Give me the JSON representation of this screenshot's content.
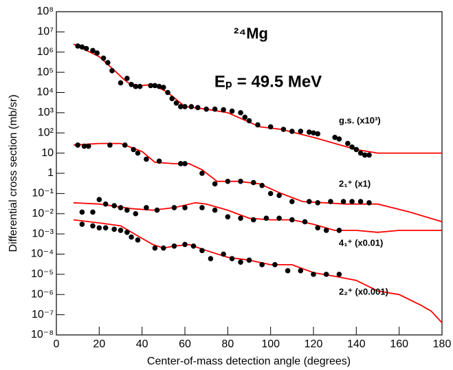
{
  "chart_data": {
    "type": "scatter",
    "annotations": [
      "²⁴Mg",
      "Eₚ = 49.5 MeV"
    ],
    "xlabel": "Center-of-mass detection angle (degrees)",
    "ylabel": "Differential cross section (mb/sr)",
    "xlim": [
      0,
      180
    ],
    "xticks": [
      0,
      20,
      40,
      60,
      80,
      100,
      120,
      140,
      160,
      180
    ],
    "ylim": [
      1e-08,
      100000000.0
    ],
    "log_y": true,
    "yticks": [
      {
        "value": 1e-08,
        "label": "10⁻⁸"
      },
      {
        "value": 1e-07,
        "label": "10⁻⁷"
      },
      {
        "value": 1e-06,
        "label": "10⁻⁶"
      },
      {
        "value": 1e-05,
        "label": "10⁻⁵"
      },
      {
        "value": 0.0001,
        "label": "10⁻⁴"
      },
      {
        "value": 0.001,
        "label": "10⁻³"
      },
      {
        "value": 0.01,
        "label": "10⁻²"
      },
      {
        "value": 0.1,
        "label": "10⁻¹"
      },
      1,
      10,
      {
        "value": 100,
        "label": "10²"
      },
      {
        "value": 1000,
        "label": "10³"
      },
      {
        "value": 10000,
        "label": "10⁴"
      },
      {
        "value": 100000,
        "label": "10⁵"
      },
      {
        "value": 1000000,
        "label": "10⁶"
      },
      {
        "value": 10000000,
        "label": "10⁷"
      },
      {
        "value": 100000000,
        "label": "10⁸"
      }
    ],
    "series": [
      {
        "name": "g.s. (x10³)",
        "color": "#000000",
        "x": [
          10,
          12,
          14,
          17,
          19,
          22,
          24,
          26,
          30,
          33,
          35,
          37,
          39,
          44,
          46,
          48,
          50,
          52,
          54,
          56,
          58,
          60,
          63,
          66,
          70,
          74,
          78,
          82,
          86,
          88,
          90,
          94,
          100,
          106,
          110,
          114,
          118,
          120,
          122,
          130,
          132,
          136,
          138,
          140,
          142,
          144,
          146
        ],
        "values": [
          2000000,
          1800000,
          1500000,
          1200000,
          900000,
          500000,
          300000,
          120000,
          30000,
          50000,
          25000,
          20000,
          20000,
          22000,
          22000,
          20000,
          18000,
          10000,
          5000,
          3000,
          2000,
          2000,
          2000,
          1800,
          1500,
          1500,
          1400,
          1200,
          1000,
          600,
          400,
          250,
          200,
          150,
          120,
          120,
          110,
          100,
          90,
          60,
          50,
          30,
          20,
          15,
          10,
          8,
          8
        ]
      },
      {
        "name": "2₁⁺ (x1)",
        "color": "#000000",
        "x": [
          10,
          13,
          15,
          25,
          32,
          36,
          38,
          42,
          48,
          58,
          60,
          68,
          74,
          80,
          86,
          92,
          96,
          100,
          104,
          110,
          118,
          122,
          128,
          134,
          138,
          142,
          146
        ],
        "values": [
          25,
          22,
          22,
          25,
          25,
          15,
          10,
          5,
          4,
          3,
          3,
          1,
          0.3,
          0.4,
          0.4,
          0.35,
          0.25,
          0.1,
          0.08,
          0.04,
          0.04,
          0.035,
          0.04,
          0.04,
          0.04,
          0.04,
          0.035
        ]
      },
      {
        "name": "4₁⁺ (x0.01)",
        "color": "#000000",
        "x": [
          12,
          17,
          20,
          23,
          27,
          30,
          33,
          37,
          42,
          47,
          55,
          60,
          68,
          74,
          80,
          86,
          92,
          98,
          104,
          110,
          116,
          122,
          126,
          132
        ],
        "values": [
          0.012,
          0.012,
          0.05,
          0.03,
          0.025,
          0.02,
          0.015,
          0.01,
          0.02,
          0.015,
          0.02,
          0.02,
          0.02,
          0.015,
          0.007,
          0.006,
          0.005,
          0.006,
          0.006,
          0.005,
          0.004,
          0.002,
          0.0015,
          0.0015
        ]
      },
      {
        "name": "2₂⁺ (x0.001)",
        "color": "#000000",
        "x": [
          12,
          17,
          20,
          23,
          27,
          30,
          33,
          35,
          38,
          46,
          50,
          55,
          60,
          64,
          68,
          72,
          78,
          82,
          86,
          90,
          96,
          102,
          108,
          114,
          120,
          126,
          132
        ],
        "values": [
          0.003,
          0.0025,
          0.002,
          0.002,
          0.0017,
          0.0015,
          0.0012,
          0.0007,
          0.0005,
          0.0002,
          0.0002,
          0.00025,
          0.0003,
          0.00025,
          0.00015,
          6e-05,
          0.0001,
          6e-05,
          4e-05,
          5e-05,
          3e-05,
          3e-05,
          1.5e-05,
          1.5e-05,
          1e-05,
          1e-05,
          1e-05
        ]
      }
    ],
    "curves": [
      {
        "color": "#ff0000",
        "x": [
          8,
          20,
          28,
          32,
          36,
          45,
          52,
          60,
          70,
          80,
          95,
          105,
          120,
          130,
          140,
          150,
          180
        ],
        "values": [
          2500000,
          600000,
          100000,
          40000,
          20000,
          25000,
          10000,
          2000,
          1500,
          1000,
          200,
          150,
          60,
          30,
          15,
          10,
          10
        ]
      },
      {
        "color": "#ff0000",
        "x": [
          8,
          20,
          30,
          40,
          46,
          55,
          62,
          68,
          75,
          85,
          95,
          105,
          115,
          125,
          135,
          150,
          165,
          180
        ],
        "values": [
          25,
          30,
          30,
          12,
          3.5,
          3,
          3,
          1.5,
          0.4,
          0.4,
          0.3,
          0.1,
          0.04,
          0.035,
          0.03,
          0.03,
          0.012,
          0.004
        ]
      },
      {
        "color": "#ff0000",
        "x": [
          8,
          20,
          35,
          45,
          55,
          65,
          70,
          80,
          90,
          100,
          110,
          120,
          130,
          140,
          150,
          160,
          180
        ],
        "values": [
          0.035,
          0.03,
          0.018,
          0.015,
          0.02,
          0.035,
          0.03,
          0.015,
          0.006,
          0.005,
          0.005,
          0.003,
          0.0015,
          0.0015,
          0.0012,
          0.0015,
          0.0015
        ]
      },
      {
        "color": "#ff0000",
        "x": [
          8,
          20,
          30,
          38,
          45,
          50,
          55,
          62,
          70,
          80,
          90,
          100,
          110,
          120,
          130,
          140,
          150,
          160,
          170,
          175,
          180
        ],
        "values": [
          0.005,
          0.0035,
          0.0025,
          0.0008,
          0.0003,
          0.0002,
          0.00025,
          0.0003,
          0.00015,
          7e-05,
          5e-05,
          3e-05,
          3e-05,
          1.2e-05,
          8e-06,
          5e-06,
          1.5e-06,
          1e-06,
          3e-07,
          1.5e-07,
          4e-08
        ]
      }
    ]
  }
}
